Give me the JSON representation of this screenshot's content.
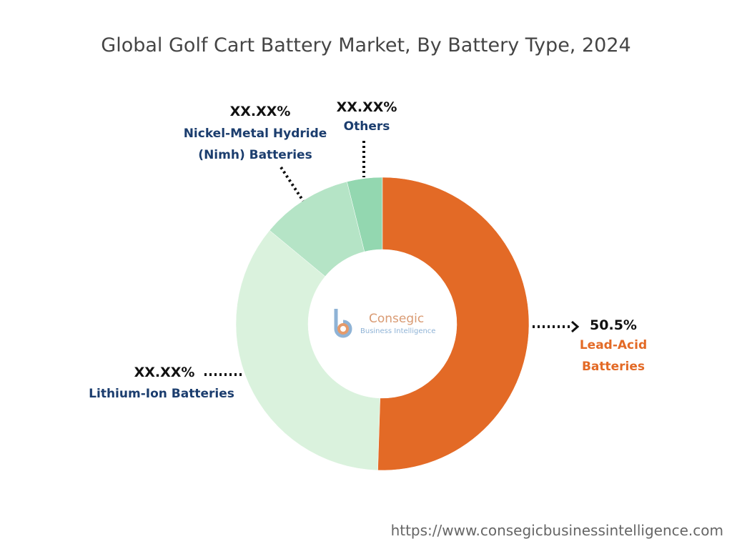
{
  "chart_data": {
    "type": "donut",
    "title": "Global Golf Cart Battery Market, By Battery Type, 2024",
    "categories": [
      "Lead-Acid Batteries",
      "Lithium-Ion Batteries",
      "Nickel-Metal Hydride (Nimh) Batteries",
      "Others"
    ],
    "values": [
      50.5,
      35.5,
      10.1,
      3.9
    ],
    "value_labels": [
      "50.5%",
      "XX.XX%",
      "XX.XX%",
      "XX.XX%"
    ],
    "colors": [
      "#e36a26",
      "#daf2dd",
      "#b5e4c6",
      "#93d7b0"
    ]
  },
  "watermark": {
    "name": "Consegic",
    "tagline": "Business Intelligence"
  },
  "footer": "https://www.consegicbusinessintelligence.com"
}
